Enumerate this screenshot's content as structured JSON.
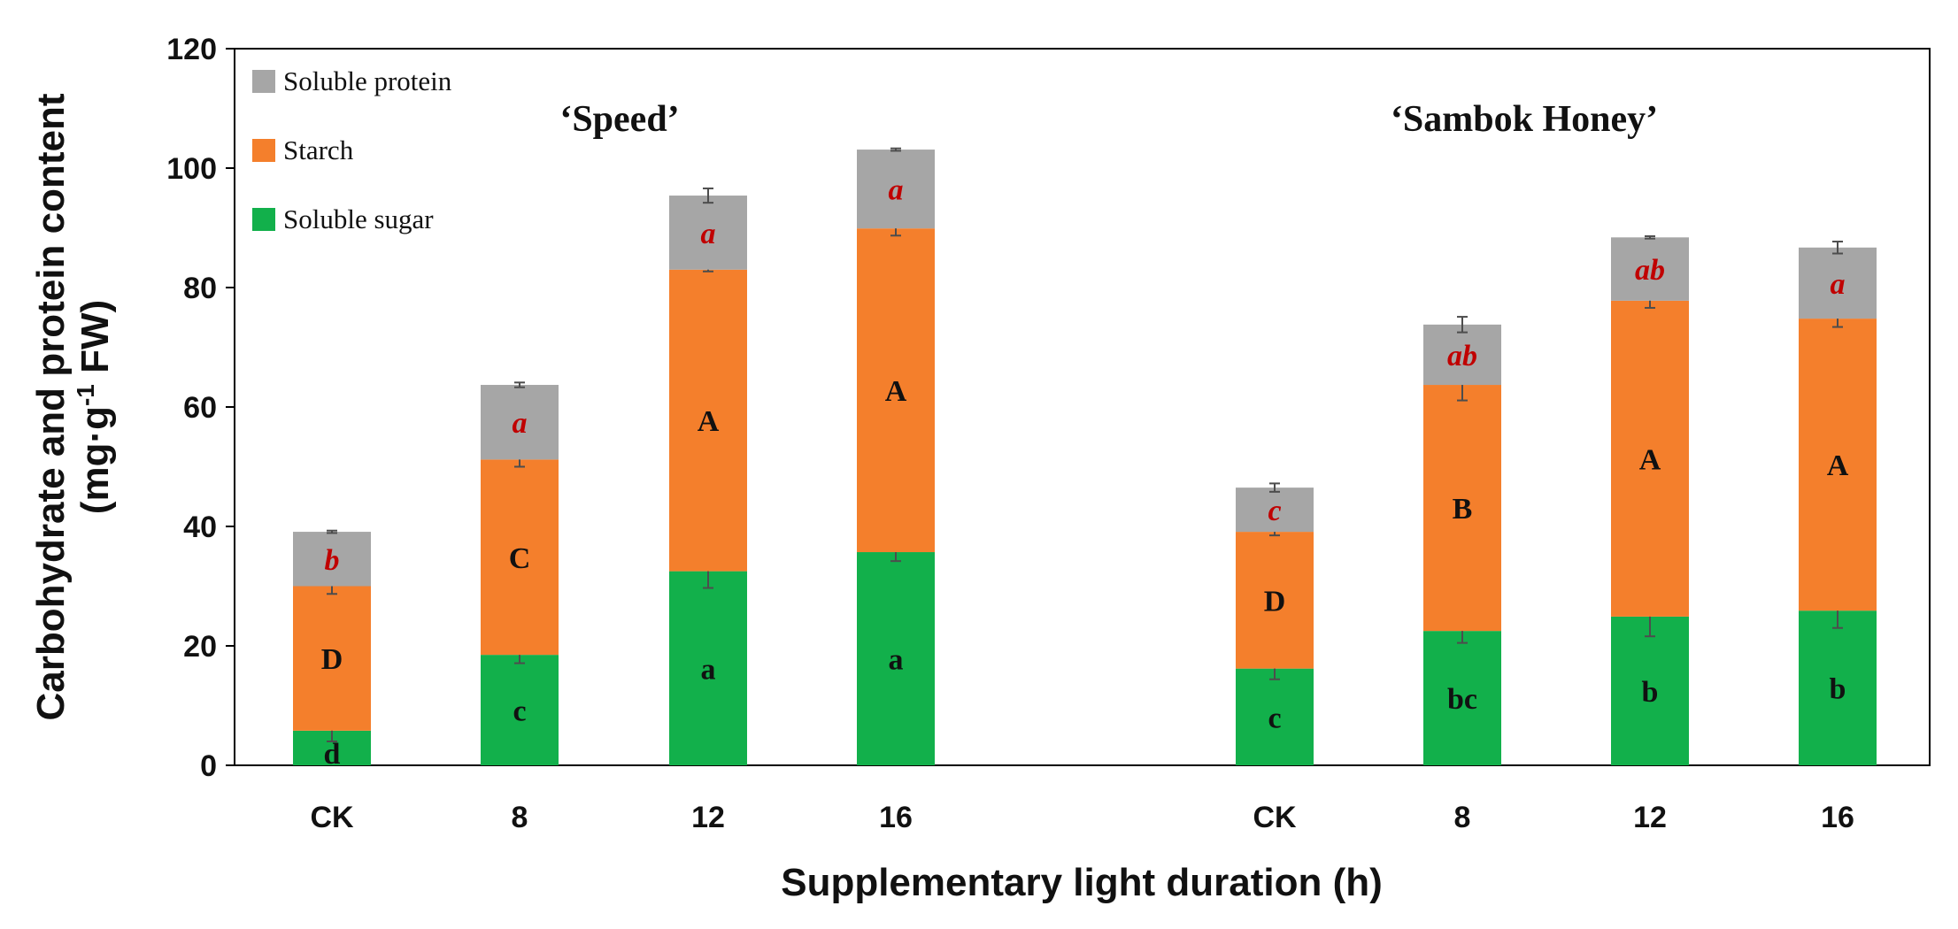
{
  "chart_data": {
    "type": "bar",
    "stacked": true,
    "xlabel": "Supplementary light duration (h)",
    "ylabel": "Carbohydrate and protein content",
    "ylabel_unit": {
      "prefix": "(mg·g",
      "superscript": "-1",
      "suffix": " FW)"
    },
    "ylim": [
      0,
      120
    ],
    "yticks": [
      0,
      20,
      40,
      60,
      80,
      100,
      120
    ],
    "grid": false,
    "legend": {
      "placement": "top-left",
      "order": [
        "Soluble protein",
        "Starch",
        "Soluble sugar"
      ]
    },
    "groups": [
      {
        "name": "‘Speed’",
        "categories": [
          "CK",
          "8",
          "12",
          "16"
        ],
        "series": [
          {
            "name": "Soluble sugar",
            "color": "#12b04b",
            "values": [
              5.8,
              18.5,
              32.5,
              35.7
            ],
            "errors": [
              1.8,
              1.4,
              2.8,
              1.5
            ],
            "letters": [
              "d",
              "c",
              "a",
              "a"
            ]
          },
          {
            "name": "Starch",
            "color": "#f47f2c",
            "values": [
              24.2,
              32.7,
              50.5,
              54.2
            ],
            "errors": [
              1.3,
              1.2,
              0.3,
              1.2
            ],
            "letters": [
              "D",
              "C",
              "A",
              "A"
            ]
          },
          {
            "name": "Soluble protein",
            "color": "#a6a6a6",
            "values": [
              9.1,
              12.5,
              12.4,
              13.2
            ],
            "errors": [
              0.2,
              0.4,
              1.2,
              0.2
            ],
            "letters": [
              "b",
              "a",
              "a",
              "a"
            ]
          }
        ]
      },
      {
        "name": "‘Sambok Honey’",
        "categories": [
          "CK",
          "8",
          "12",
          "16"
        ],
        "series": [
          {
            "name": "Soluble sugar",
            "color": "#12b04b",
            "values": [
              16.2,
              22.5,
              24.9,
              25.9
            ],
            "errors": [
              1.8,
              2.0,
              3.3,
              2.9
            ],
            "letters": [
              "c",
              "bc",
              "b",
              "b"
            ]
          },
          {
            "name": "Starch",
            "color": "#f47f2c",
            "values": [
              22.9,
              41.2,
              52.9,
              48.9
            ],
            "errors": [
              0.6,
              2.6,
              1.2,
              1.4
            ],
            "letters": [
              "D",
              "B",
              "A",
              "A"
            ]
          },
          {
            "name": "Soluble protein",
            "color": "#a6a6a6",
            "values": [
              7.4,
              10.1,
              10.6,
              11.9
            ],
            "errors": [
              0.7,
              1.3,
              0.2,
              1.0
            ],
            "letters": [
              "c",
              "ab",
              "ab",
              "a"
            ]
          }
        ]
      }
    ]
  }
}
